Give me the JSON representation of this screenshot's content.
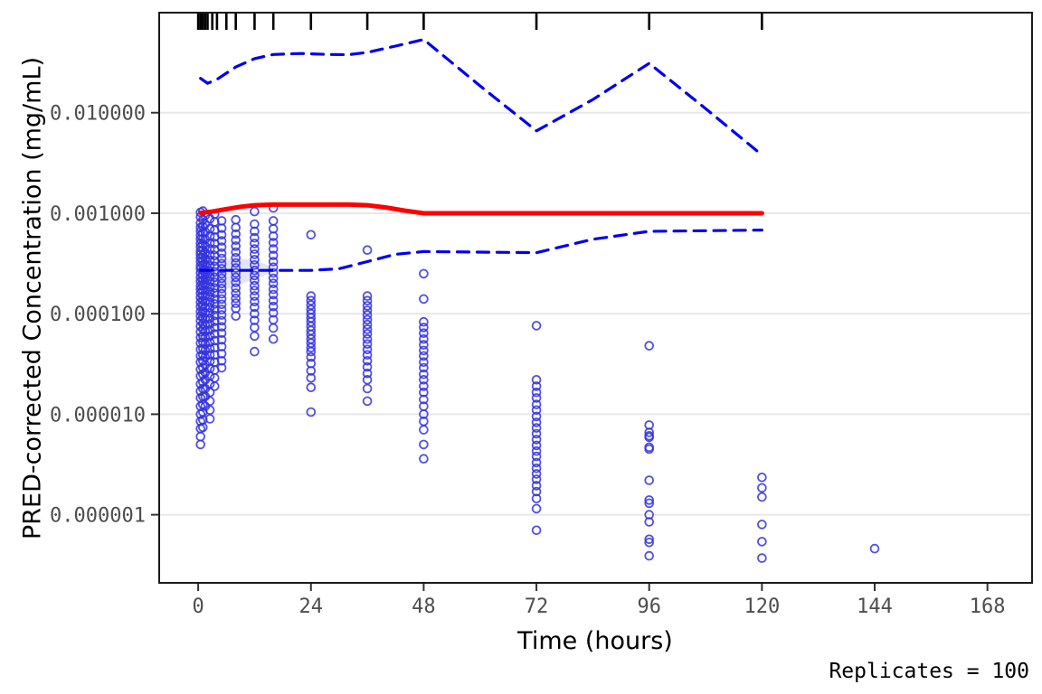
{
  "figure": {
    "ylabel": "PRED-corrected Concentration (mg/mL)",
    "xlabel": "Time (hours)",
    "caption": "Replicates = 100"
  },
  "chart_data": {
    "type": "scatter",
    "title": "",
    "xlabel": "Time (hours)",
    "ylabel": "PRED-corrected Concentration (mg/mL)",
    "annotation": "Replicates = 100",
    "y_scale": "log10",
    "grid": "horizontal-major-only",
    "legend": "none",
    "x_ticks": [
      0,
      24,
      48,
      72,
      96,
      120,
      144,
      168
    ],
    "x_tick_labels": [
      "0",
      "24",
      "48",
      "72",
      "96",
      "120",
      "144",
      "168"
    ],
    "y_ticks": [
      0.01,
      0.001,
      0.0001,
      1e-05,
      1e-06
    ],
    "y_tick_labels": [
      "0.010000",
      "0.001000",
      "0.000100",
      "0.000010",
      "0.000001"
    ],
    "xlim": [
      -8.3,
      177.5
    ],
    "ylim": [
      2.1e-07,
      0.099
    ],
    "rug_times": [
      0,
      0.5,
      1,
      1.5,
      2,
      3,
      4,
      6,
      8,
      12,
      16,
      24,
      36,
      48,
      72,
      96,
      120
    ],
    "colors": {
      "points": "#3333dd",
      "percentile_dashed": "#0000ee",
      "median_solid": "#ff0000",
      "grid": "#e8e8e8",
      "tick_text": "#4d4d4d",
      "panel_border": "#1a1a1a",
      "ribbon": "#c9c9f2"
    },
    "series": [
      {
        "name": "median-line",
        "type": "line",
        "style": "solid",
        "color": "#ff0000",
        "points": [
          [
            0.5,
            0.00101
          ],
          [
            3,
            0.00104
          ],
          [
            6,
            0.0011
          ],
          [
            9,
            0.00116
          ],
          [
            12,
            0.0012
          ],
          [
            16,
            0.00122
          ],
          [
            24,
            0.00122
          ],
          [
            32,
            0.00122
          ],
          [
            36,
            0.0012
          ],
          [
            40,
            0.00114
          ],
          [
            44,
            0.00106
          ],
          [
            48,
            0.001
          ],
          [
            60,
            0.001
          ],
          [
            72,
            0.001
          ],
          [
            96,
            0.001
          ],
          [
            120,
            0.001
          ]
        ]
      },
      {
        "name": "upper-percentile-line",
        "type": "line",
        "style": "dashed",
        "color": "#0000ee",
        "points": [
          [
            0.5,
            0.022
          ],
          [
            2,
            0.0196
          ],
          [
            4,
            0.0215
          ],
          [
            8,
            0.0285
          ],
          [
            12,
            0.0345
          ],
          [
            16,
            0.038
          ],
          [
            22,
            0.0388
          ],
          [
            28,
            0.038
          ],
          [
            32,
            0.0378
          ],
          [
            36,
            0.0398
          ],
          [
            42,
            0.046
          ],
          [
            48,
            0.0535
          ],
          [
            60,
            0.0185
          ],
          [
            72,
            0.0066
          ],
          [
            84,
            0.0135
          ],
          [
            96,
            0.031
          ],
          [
            108,
            0.011
          ],
          [
            120,
            0.0038
          ]
        ]
      },
      {
        "name": "lower-percentile-line",
        "type": "line",
        "style": "dashed",
        "color": "#0000ee",
        "points": [
          [
            0.5,
            0.00027
          ],
          [
            8,
            0.00027
          ],
          [
            16,
            0.00027
          ],
          [
            24,
            0.00027
          ],
          [
            30,
            0.00028
          ],
          [
            36,
            0.00033
          ],
          [
            42,
            0.00039
          ],
          [
            48,
            0.000415
          ],
          [
            60,
            0.00041
          ],
          [
            72,
            0.000405
          ],
          [
            84,
            0.00055
          ],
          [
            96,
            0.00066
          ],
          [
            108,
            0.00067
          ],
          [
            120,
            0.00068
          ]
        ]
      },
      {
        "name": "ci-ribbon",
        "type": "area",
        "color": "#c9c9f2",
        "opacity": 0.5,
        "points": [
          [
            0.5,
            0.000275
          ],
          [
            4,
            0.00034
          ],
          [
            8,
            0.00036
          ],
          [
            12,
            0.00034
          ],
          [
            17,
            0.00028
          ],
          [
            17,
            0.00027
          ],
          [
            12,
            0.00022
          ],
          [
            8,
            0.00019
          ],
          [
            4,
            0.000165
          ],
          [
            1.5,
            0.000145
          ],
          [
            0.5,
            0.00021
          ]
        ]
      },
      {
        "name": "observed-points",
        "type": "scatter",
        "color": "#3333dd",
        "groups": [
          {
            "t": 0.5,
            "v": [
              0.00102,
              0.00092,
              0.0008,
              0.00072,
              0.00066,
              0.0006,
              0.00055,
              0.0005,
              0.00046,
              0.00042,
              0.00039,
              0.00036,
              0.00033,
              0.0003,
              0.00028,
              0.000255,
              0.00023,
              0.00021,
              0.00019,
              0.000175,
              0.00016,
              0.000145,
              0.00013,
              0.000118,
              0.000105,
              9.5e-05,
              8.5e-05,
              7.5e-05,
              6.6e-05,
              5.8e-05,
              5.1e-05,
              4.4e-05,
              3.8e-05,
              3.3e-05,
              2.8e-05,
              2.4e-05,
              2e-05,
              1.7e-05,
              1.45e-05,
              1.2e-05,
              1e-05,
              8.5e-06,
              7.2e-06,
              6e-06,
              5e-06
            ]
          },
          {
            "t": 1,
            "v": [
              0.00105,
              0.00086,
              0.00074,
              0.00064,
              0.00056,
              0.00049,
              0.00043,
              0.00038,
              0.00034,
              0.000305,
              0.00027,
              0.00024,
              0.000215,
              0.00019,
              0.00017,
              0.00015,
              0.000135,
              0.00012,
              0.000105,
              9.2e-05,
              8e-05,
              7e-05,
              6e-05,
              5.2e-05,
              4.5e-05,
              3.9e-05,
              3.4e-05,
              2.9e-05,
              2.5e-05,
              2.1e-05,
              1.8e-05,
              1.5e-05,
              1.25e-05,
              1.05e-05,
              8.8e-06,
              7.4e-06
            ]
          },
          {
            "t": 1.5,
            "v": [
              0.00095,
              0.00078,
              0.00065,
              0.00055,
              0.00047,
              0.000405,
              0.00035,
              0.00031,
              0.000275,
              0.000245,
              0.00022,
              0.000195,
              0.000172,
              0.000152,
              0.000133,
              0.000116,
              0.000102,
              8.9e-05,
              7.7e-05,
              6.7e-05,
              5.8e-05,
              5e-05,
              4.3e-05,
              3.7e-05,
              3.1e-05,
              2.6e-05,
              2.2e-05,
              1.8e-05,
              1.5e-05,
              1.2e-05
            ]
          },
          {
            "t": 2.5,
            "v": [
              0.00088,
              0.0007,
              0.00059,
              0.000505,
              0.00044,
              0.000385,
              0.00034,
              0.0003,
              0.000265,
              0.000235,
              0.00021,
              0.000185,
              0.000165,
              0.000147,
              0.00013,
              0.000115,
              0.000102,
              9e-05,
              7.9e-05,
              6.9e-05,
              6e-05,
              5.2e-05,
              4.5e-05,
              3.9e-05,
              3.35e-05,
              2.85e-05,
              2.4e-05,
              2e-05,
              1.65e-05,
              1.35e-05,
              1.1e-05,
              9e-06
            ]
          },
          {
            "t": 3.5,
            "v": [
              0.00098,
              0.00082,
              0.00068,
              0.00058,
              0.0005,
              0.000435,
              0.00038,
              0.000335,
              0.000295,
              0.00026,
              0.00023,
              0.000205,
              0.00018,
              0.00016,
              0.00014,
              0.000125,
              0.00011,
              9.6e-05,
              8.4e-05,
              7.3e-05,
              6.3e-05,
              5.4e-05,
              4.6e-05,
              3.9e-05,
              3.3e-05,
              2.75e-05,
              2.3e-05,
              1.9e-05
            ]
          },
          {
            "t": 5,
            "v": [
              0.00084,
              0.00071,
              0.00061,
              0.00053,
              0.00046,
              0.0004,
              0.000355,
              0.000315,
              0.00028,
              0.00025,
              0.000225,
              0.0002,
              0.000178,
              0.000158,
              0.00014,
              0.000124,
              0.00011,
              9.7e-05,
              8.5e-05,
              7.4e-05,
              6.4e-05,
              5.5e-05,
              4.7e-05,
              4e-05,
              3.4e-05,
              2.9e-05
            ]
          },
          {
            "t": 8,
            "v": [
              0.00086,
              0.00072,
              0.00062,
              0.00054,
              0.00047,
              0.00041,
              0.00036,
              0.00032,
              0.000285,
              0.000255,
              0.00023,
              0.000205,
              0.00018,
              0.00016,
              0.000142,
              0.000127,
              0.000113,
              9.5e-05
            ]
          },
          {
            "t": 12,
            "v": [
              0.00104,
              0.00078,
              0.00066,
              0.00057,
              0.0005,
              0.00044,
              0.00039,
              0.000345,
              0.000305,
              0.00027,
              0.00024,
              0.000215,
              0.00019,
              0.00017,
              0.00015,
              0.000132,
              0.000116,
              0.0001,
              8.6e-05,
              7.3e-05,
              6e-05,
              4.2e-05
            ]
          },
          {
            "t": 16,
            "v": [
              0.00113,
              0.00084,
              0.0007,
              0.00059,
              0.00051,
              0.00044,
              0.00038,
              0.00033,
              0.00029,
              0.000255,
              0.000225,
              0.0002,
              0.000175,
              0.000155,
              0.000135,
              0.000118,
              0.000102,
              8.7e-05,
              7.2e-05,
              5.6e-05
            ]
          },
          {
            "t": 24,
            "v": [
              0.00061,
              0.00015,
              0.000135,
              0.000122,
              0.00011,
              0.0001,
              9.1e-05,
              8.3e-05,
              7.5e-05,
              6.8e-05,
              6.2e-05,
              5.6e-05,
              5.1e-05,
              4.6e-05,
              4.2e-05,
              3.7e-05,
              3.2e-05,
              2.7e-05,
              2.3e-05,
              1.85e-05,
              1.05e-05
            ]
          },
          {
            "t": 36,
            "v": [
              0.00043,
              0.00015,
              0.000135,
              0.00012,
              0.000108,
              9.7e-05,
              8.7e-05,
              7.8e-05,
              7e-05,
              6.3e-05,
              5.6e-05,
              5e-05,
              4.4e-05,
              3.9e-05,
              3.4e-05,
              2.95e-05,
              2.55e-05,
              2.2e-05,
              1.8e-05,
              1.35e-05
            ]
          },
          {
            "t": 48,
            "v": [
              0.00025,
              0.00014,
              8.3e-05,
              7.3e-05,
              6.4e-05,
              5.6e-05,
              4.9e-05,
              4.3e-05,
              3.8e-05,
              3.3e-05,
              2.9e-05,
              2.5e-05,
              2.2e-05,
              1.9e-05,
              1.65e-05,
              1.4e-05,
              1.2e-05,
              1e-05,
              8.5e-06,
              7e-06,
              5e-06,
              3.6e-06
            ]
          },
          {
            "t": 72,
            "v": [
              7.6e-05,
              2.2e-05,
              1.9e-05,
              1.65e-05,
              1.45e-05,
              1.25e-05,
              1.1e-05,
              9.5e-06,
              8.3e-06,
              7.3e-06,
              6.4e-06,
              5.6e-06,
              4.9e-06,
              4.3e-06,
              3.8e-06,
              3.3e-06,
              2.9e-06,
              2.55e-06,
              2.25e-06,
              1.95e-06,
              1.7e-06,
              1.45e-06,
              1.15e-06,
              7e-07
            ]
          },
          {
            "t": 96,
            "v": [
              4.8e-05,
              7.8e-06,
              6.6e-06,
              6.1e-06,
              5.9e-06,
              4.7e-06,
              4.5e-06,
              2.2e-06,
              1.4e-06,
              1.3e-06,
              1e-06,
              8.5e-07,
              5.7e-07,
              5.3e-07,
              3.9e-07
            ]
          },
          {
            "t": 120,
            "v": [
              2.35e-06,
              1.85e-06,
              1.5e-06,
              8e-07,
              5.4e-07,
              3.7e-07
            ]
          },
          {
            "t": 144,
            "v": [
              4.6e-07
            ]
          }
        ]
      }
    ]
  }
}
